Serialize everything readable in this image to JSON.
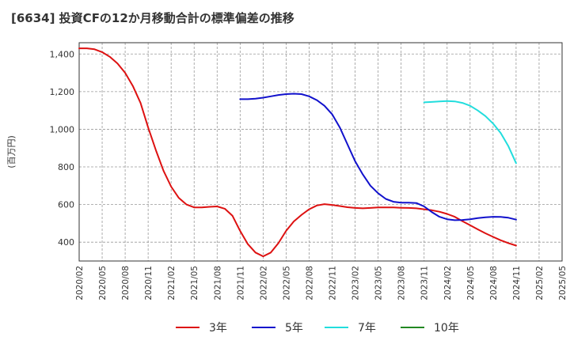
{
  "chart_data": {
    "type": "line",
    "title": "[6634]  投資CFの12か月移動合計の標準偏差の推移",
    "ylabel": "(百万円)",
    "xlabel": "",
    "ylim": [
      300,
      1460
    ],
    "yticks": [
      400,
      600,
      800,
      1000,
      1200,
      1400
    ],
    "ytick_labels": [
      "400",
      "600",
      "800",
      "1,000",
      "1,200",
      "1,400"
    ],
    "xticks": [
      "2020/02",
      "2020/05",
      "2020/08",
      "2020/11",
      "2021/02",
      "2021/05",
      "2021/08",
      "2021/11",
      "2022/02",
      "2022/05",
      "2022/08",
      "2022/11",
      "2023/02",
      "2023/05",
      "2023/08",
      "2023/11",
      "2024/02",
      "2024/05",
      "2024/08",
      "2024/11",
      "2025/02",
      "2025/05"
    ],
    "grid": true,
    "legend_position": "bottom",
    "series": [
      {
        "name": "3年",
        "color": "#dd1111",
        "x": [
          "2020/02",
          "2020/03",
          "2020/04",
          "2020/05",
          "2020/06",
          "2020/07",
          "2020/08",
          "2020/09",
          "2020/10",
          "2020/11",
          "2020/12",
          "2021/01",
          "2021/02",
          "2021/03",
          "2021/04",
          "2021/05",
          "2021/06",
          "2021/07",
          "2021/08",
          "2021/09",
          "2021/10",
          "2021/11",
          "2021/12",
          "2022/01",
          "2022/02",
          "2022/03",
          "2022/04",
          "2022/05",
          "2022/06",
          "2022/07",
          "2022/08",
          "2022/09",
          "2022/10",
          "2022/11",
          "2022/12",
          "2023/01",
          "2023/02",
          "2023/03",
          "2023/04",
          "2023/05",
          "2023/06",
          "2023/07",
          "2023/08",
          "2023/09",
          "2023/10",
          "2023/11",
          "2023/12",
          "2024/01",
          "2024/02",
          "2024/03",
          "2024/04",
          "2024/05",
          "2024/06",
          "2024/07",
          "2024/08",
          "2024/09",
          "2024/10",
          "2024/11"
        ],
        "values": [
          1430,
          1430,
          1425,
          1410,
          1385,
          1350,
          1300,
          1230,
          1140,
          1010,
          890,
          780,
          695,
          635,
          600,
          585,
          585,
          588,
          590,
          578,
          540,
          460,
          390,
          345,
          325,
          345,
          395,
          460,
          510,
          545,
          575,
          595,
          602,
          598,
          592,
          586,
          582,
          580,
          582,
          585,
          585,
          585,
          583,
          582,
          580,
          575,
          570,
          562,
          550,
          535,
          512,
          490,
          468,
          447,
          428,
          410,
          395,
          382
        ]
      },
      {
        "name": "5年",
        "color": "#1111cc",
        "x": [
          "2021/11",
          "2021/12",
          "2022/01",
          "2022/02",
          "2022/03",
          "2022/04",
          "2022/05",
          "2022/06",
          "2022/07",
          "2022/08",
          "2022/09",
          "2022/10",
          "2022/11",
          "2022/12",
          "2023/01",
          "2023/02",
          "2023/03",
          "2023/04",
          "2023/05",
          "2023/06",
          "2023/07",
          "2023/08",
          "2023/09",
          "2023/10",
          "2023/11",
          "2023/12",
          "2024/01",
          "2024/02",
          "2024/03",
          "2024/04",
          "2024/05",
          "2024/06",
          "2024/07",
          "2024/08",
          "2024/09",
          "2024/10",
          "2024/11"
        ],
        "values": [
          1160,
          1160,
          1163,
          1168,
          1175,
          1182,
          1187,
          1189,
          1187,
          1175,
          1155,
          1125,
          1080,
          1010,
          920,
          830,
          760,
          700,
          660,
          630,
          615,
          610,
          610,
          608,
          590,
          560,
          535,
          522,
          517,
          518,
          522,
          528,
          532,
          535,
          534,
          530,
          520
        ]
      },
      {
        "name": "7年",
        "color": "#22dddd",
        "x": [
          "2023/11",
          "2023/12",
          "2024/01",
          "2024/02",
          "2024/03",
          "2024/04",
          "2024/05",
          "2024/06",
          "2024/07",
          "2024/08",
          "2024/09",
          "2024/10",
          "2024/11"
        ],
        "values": [
          1143,
          1145,
          1148,
          1150,
          1148,
          1140,
          1125,
          1100,
          1070,
          1030,
          980,
          910,
          820
        ]
      },
      {
        "name": "10年",
        "color": "#228822",
        "x": [],
        "values": []
      }
    ]
  }
}
